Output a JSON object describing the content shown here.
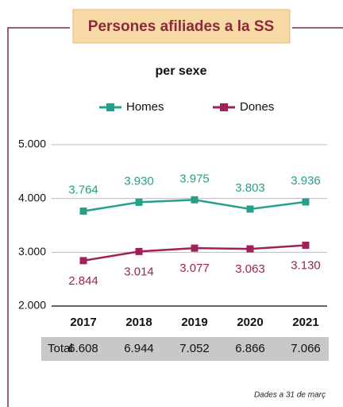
{
  "chart_data": {
    "type": "line",
    "title": "Persones afiliades a la SS",
    "subtitle": "per sexe",
    "categories": [
      "2017",
      "2018",
      "2019",
      "2020",
      "2021"
    ],
    "series": [
      {
        "name": "Homes",
        "color": "#27a08a",
        "values": [
          3764,
          3930,
          3975,
          3803,
          3936
        ],
        "value_labels": [
          "3.764",
          "3.930",
          "3.975",
          "3.803",
          "3.936"
        ]
      },
      {
        "name": "Dones",
        "color": "#9e2159",
        "values": [
          2844,
          3014,
          3077,
          3063,
          3130
        ],
        "value_labels": [
          "2.844",
          "3.014",
          "3.077",
          "3.063",
          "3.130"
        ]
      }
    ],
    "ylim": [
      2000,
      5000
    ],
    "yticks": [
      {
        "value": 2000,
        "label": "2.000"
      },
      {
        "value": 3000,
        "label": "3.000"
      },
      {
        "value": 4000,
        "label": "4.000"
      },
      {
        "value": 5000,
        "label": "5.000"
      }
    ],
    "grid": true,
    "legend": "top",
    "totals": {
      "label": "Total",
      "values": [
        "6.608",
        "6.944",
        "7.052",
        "6.866",
        "7.066"
      ]
    },
    "note": "Dades a 31 de març"
  }
}
